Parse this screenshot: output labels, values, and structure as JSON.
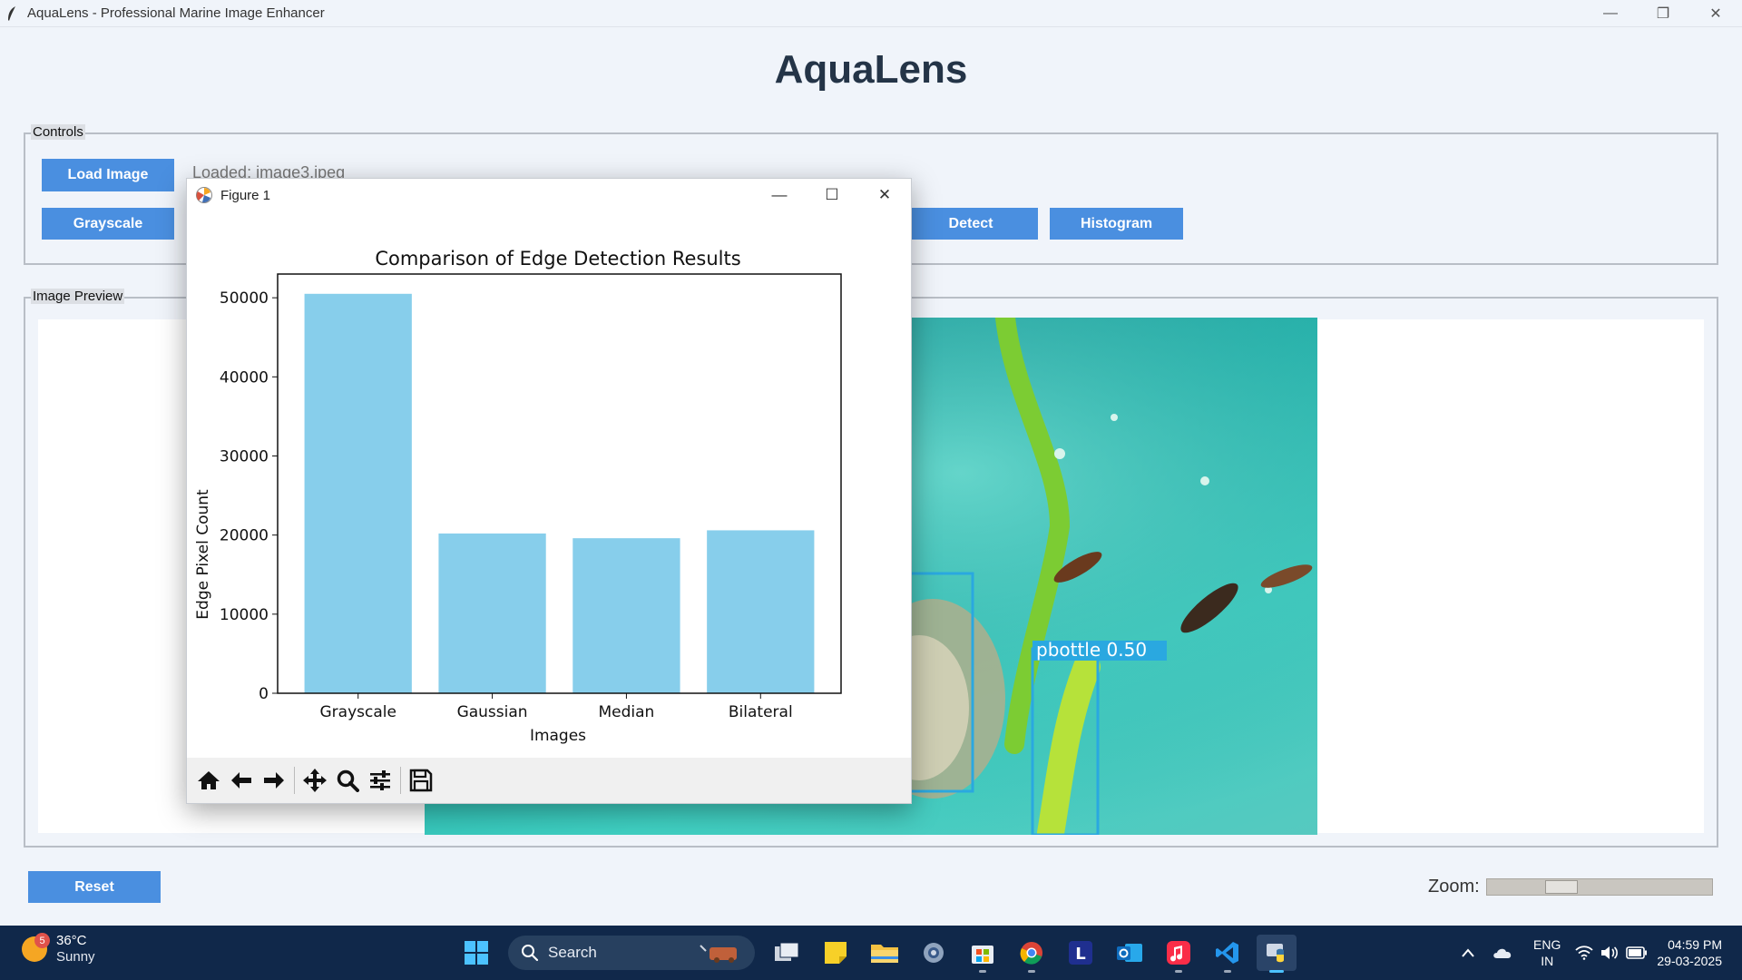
{
  "window": {
    "title": "AquaLens - Professional Marine Image Enhancer",
    "minimize": "—",
    "restore": "❐",
    "close": "✕"
  },
  "app": {
    "heading": "AquaLens"
  },
  "controls": {
    "label": "Controls",
    "load_image": "Load Image",
    "loaded_text": "Loaded: image3.jpeg",
    "grayscale": "Grayscale",
    "detect": "Detect",
    "histogram": "Histogram"
  },
  "preview": {
    "label": "Image Preview",
    "detection_label": "pbottle  0.50"
  },
  "figure": {
    "title": "Figure 1",
    "minimize": "—",
    "maximize": "☐",
    "close": "✕",
    "toolbar": [
      "home-icon",
      "back-icon",
      "forward-icon",
      "pan-icon",
      "zoom-icon",
      "configure-icon",
      "save-icon"
    ]
  },
  "chart_data": {
    "type": "bar",
    "title": "Comparison of Edge Detection Results",
    "xlabel": "Images",
    "ylabel": "Edge Pixel Count",
    "categories": [
      "Grayscale",
      "Gaussian",
      "Median",
      "Bilateral"
    ],
    "values": [
      50500,
      20200,
      19600,
      20600
    ],
    "ylim": [
      0,
      53000
    ],
    "yticks": [
      0,
      10000,
      20000,
      30000,
      40000,
      50000
    ],
    "bar_color": "#87ceeb",
    "grid": false
  },
  "bottom": {
    "reset": "Reset",
    "zoom_label": "Zoom:",
    "zoom_value": 0.3
  },
  "taskbar": {
    "weather_temp": "36°C",
    "weather_condition": "Sunny",
    "weather_badge": "5",
    "search_placeholder": "Search",
    "language_line1": "ENG",
    "language_line2": "IN",
    "time": "04:59 PM",
    "date": "29-03-2025"
  }
}
